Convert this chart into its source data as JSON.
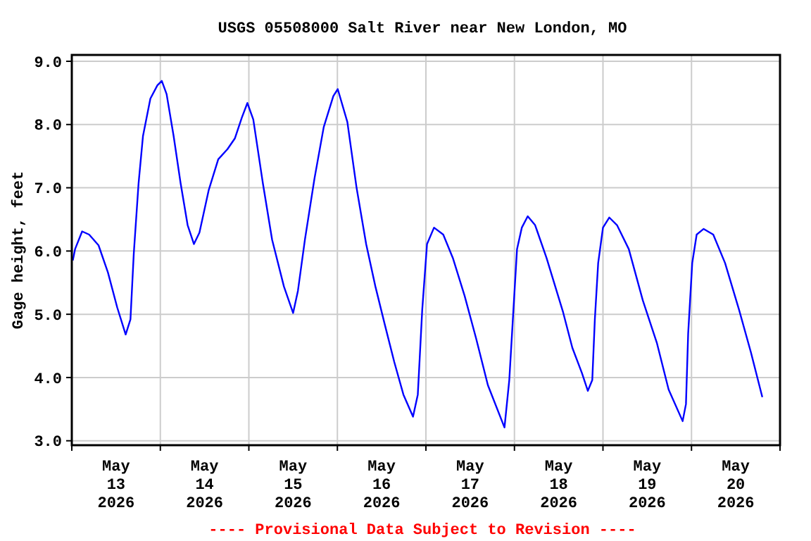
{
  "chart_data": {
    "type": "line",
    "title": "USGS 05508000 Salt River near New London, MO",
    "ylabel": "Gage height, feet",
    "annotations": [
      "---- Provisional Data Subject to Revision ----"
    ],
    "grid": true,
    "marker": "none",
    "line_style": "solid",
    "xlim": [
      "2026-05-13T00:00",
      "2026-05-21T00:00"
    ],
    "xticks": [
      {
        "value": "2026-05-13T00:00",
        "label": null
      },
      {
        "value": "2026-05-13T12:00",
        "label": "May\n13\n2026"
      },
      {
        "value": "2026-05-14T00:00",
        "label": null
      },
      {
        "value": "2026-05-14T12:00",
        "label": "May\n14\n2026"
      },
      {
        "value": "2026-05-15T00:00",
        "label": null
      },
      {
        "value": "2026-05-15T12:00",
        "label": "May\n15\n2026"
      },
      {
        "value": "2026-05-16T00:00",
        "label": null
      },
      {
        "value": "2026-05-16T12:00",
        "label": "May\n16\n2026"
      },
      {
        "value": "2026-05-17T00:00",
        "label": null
      },
      {
        "value": "2026-05-17T12:00",
        "label": "May\n17\n2026"
      },
      {
        "value": "2026-05-18T00:00",
        "label": null
      },
      {
        "value": "2026-05-18T12:00",
        "label": "May\n18\n2026"
      },
      {
        "value": "2026-05-19T00:00",
        "label": null
      },
      {
        "value": "2026-05-19T12:00",
        "label": "May\n19\n2026"
      },
      {
        "value": "2026-05-20T00:00",
        "label": null
      },
      {
        "value": "2026-05-20T12:00",
        "label": "May\n20\n2026"
      },
      {
        "value": "2026-05-21T00:00",
        "label": null
      }
    ],
    "ylim": [
      2.93,
      9.1
    ],
    "yticks": [
      {
        "value": 3,
        "label": "3.0"
      },
      {
        "value": 4,
        "label": "4.0"
      },
      {
        "value": 5,
        "label": "5.0"
      },
      {
        "value": 6,
        "label": "6.0"
      },
      {
        "value": 7,
        "label": "7.0"
      },
      {
        "value": 8,
        "label": "8.0"
      },
      {
        "value": 9,
        "label": "9.0"
      }
    ],
    "series": [
      {
        "color": "#0000ff",
        "x": [
          "2026-05-13T00:16",
          "2026-05-13T00:53",
          "2026-05-13T02:48",
          "2026-05-13T04:42",
          "2026-05-13T07:15",
          "2026-05-13T09:48",
          "2026-05-13T12:18",
          "2026-05-13T14:36",
          "2026-05-13T15:54",
          "2026-05-13T16:48",
          "2026-05-13T18:06",
          "2026-05-13T19:18",
          "2026-05-13T21:18",
          "2026-05-13T23:12",
          "2026-05-14T00:24",
          "2026-05-14T01:42",
          "2026-05-14T03:36",
          "2026-05-14T05:30",
          "2026-05-14T07:24",
          "2026-05-14T09:06",
          "2026-05-14T10:36",
          "2026-05-14T13:06",
          "2026-05-14T15:42",
          "2026-05-14T18:12",
          "2026-05-14T20:12",
          "2026-05-14T22:06",
          "2026-05-14T23:36",
          "2026-05-15T01:12",
          "2026-05-15T03:48",
          "2026-05-15T06:18",
          "2026-05-15T09:30",
          "2026-05-15T12:00",
          "2026-05-15T13:18",
          "2026-05-15T15:12",
          "2026-05-15T17:48",
          "2026-05-15T20:18",
          "2026-05-15T22:54",
          "2026-05-16T00:06",
          "2026-05-16T02:42",
          "2026-05-16T05:12",
          "2026-05-16T07:48",
          "2026-05-16T10:18",
          "2026-05-16T12:48",
          "2026-05-16T15:24",
          "2026-05-16T17:54",
          "2026-05-16T20:30",
          "2026-05-16T21:48",
          "2026-05-16T23:00",
          "2026-05-17T00:18",
          "2026-05-17T02:12",
          "2026-05-17T04:42",
          "2026-05-17T07:18",
          "2026-05-17T10:30",
          "2026-05-17T13:36",
          "2026-05-17T16:48",
          "2026-05-17T21:18",
          "2026-05-17T22:36",
          "2026-05-17T23:30",
          "2026-05-18T00:42",
          "2026-05-18T02:00",
          "2026-05-18T03:36",
          "2026-05-18T05:36",
          "2026-05-18T08:42",
          "2026-05-18T13:12",
          "2026-05-18T15:42",
          "2026-05-18T18:18",
          "2026-05-18T19:54",
          "2026-05-18T21:06",
          "2026-05-18T21:48",
          "2026-05-18T22:42",
          "2026-05-19T00:00",
          "2026-05-19T01:42",
          "2026-05-19T03:48",
          "2026-05-19T07:00",
          "2026-05-19T10:48",
          "2026-05-19T14:36",
          "2026-05-19T17:48",
          "2026-05-19T21:36",
          "2026-05-19T22:30",
          "2026-05-19T23:06",
          "2026-05-20T00:12",
          "2026-05-20T01:24",
          "2026-05-20T03:18",
          "2026-05-20T05:54",
          "2026-05-20T09:06",
          "2026-05-20T12:54",
          "2026-05-20T16:06",
          "2026-05-20T19:12"
        ],
        "values": [
          5.85,
          6.03,
          6.31,
          6.26,
          6.09,
          5.66,
          5.11,
          4.68,
          4.92,
          5.96,
          7.07,
          7.82,
          8.41,
          8.62,
          8.69,
          8.48,
          7.82,
          7.07,
          6.41,
          6.11,
          6.29,
          6.96,
          7.45,
          7.61,
          7.78,
          8.11,
          8.34,
          8.08,
          7.07,
          6.18,
          5.44,
          5.02,
          5.37,
          6.18,
          7.15,
          7.96,
          8.45,
          8.56,
          8.04,
          7.0,
          6.11,
          5.44,
          4.85,
          4.25,
          3.73,
          3.38,
          3.73,
          5.07,
          6.11,
          6.37,
          6.26,
          5.89,
          5.29,
          4.62,
          3.88,
          3.21,
          3.96,
          4.85,
          6.03,
          6.37,
          6.55,
          6.41,
          5.89,
          5.03,
          4.47,
          4.07,
          3.79,
          3.96,
          4.92,
          5.81,
          6.37,
          6.53,
          6.41,
          6.03,
          5.22,
          4.55,
          3.81,
          3.31,
          3.58,
          4.7,
          5.81,
          6.26,
          6.35,
          6.26,
          5.81,
          5.07,
          4.4,
          3.69
        ]
      }
    ]
  }
}
